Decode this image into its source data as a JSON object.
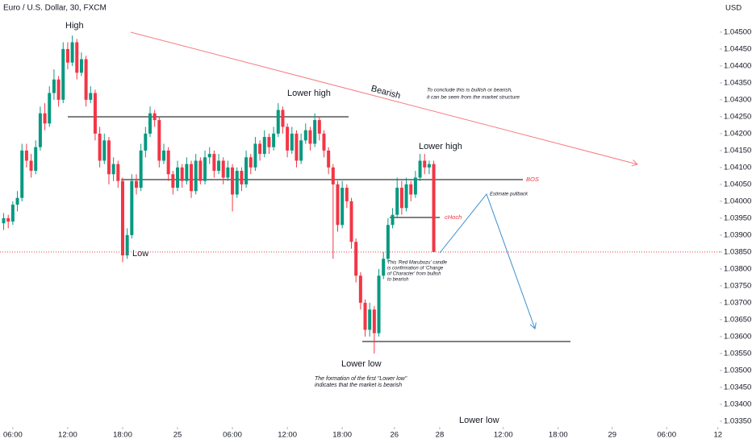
{
  "chart_data": {
    "type": "candlestick",
    "title": "Euro / U.S. Dollar, 30, FXCM",
    "currency": "USD",
    "up_color": "#089981",
    "down_color": "#f23645",
    "xlim": [
      -2.8,
      154.5
    ],
    "ylim": [
      1.03333,
      1.04595
    ],
    "xticks": [
      {
        "value": 0,
        "label": "06:00"
      },
      {
        "value": 12,
        "label": "12:00"
      },
      {
        "value": 24,
        "label": "18:00"
      },
      {
        "value": 36,
        "label": "25"
      },
      {
        "value": 48,
        "label": "06:00"
      },
      {
        "value": 60,
        "label": "12:00"
      },
      {
        "value": 72,
        "label": "18:00"
      },
      {
        "value": 83.4,
        "label": "26"
      },
      {
        "value": 93.3,
        "label": "28"
      },
      {
        "value": 107.2,
        "label": "12:00"
      },
      {
        "value": 119.2,
        "label": "18:00"
      },
      {
        "value": 131,
        "label": "29"
      },
      {
        "value": 142.9,
        "label": "06:00"
      },
      {
        "value": 154.1,
        "label": "12"
      }
    ],
    "yticks": [
      {
        "value": 1.045,
        "label": "1.04500"
      },
      {
        "value": 1.0445,
        "label": "1.04450"
      },
      {
        "value": 1.044,
        "label": "1.04400"
      },
      {
        "value": 1.0435,
        "label": "1.04350"
      },
      {
        "value": 1.043,
        "label": "1.04300"
      },
      {
        "value": 1.0425,
        "label": "1.04250"
      },
      {
        "value": 1.042,
        "label": "1.04200"
      },
      {
        "value": 1.0415,
        "label": "1.04150"
      },
      {
        "value": 1.041,
        "label": "1.04100"
      },
      {
        "value": 1.0405,
        "label": "1.04050"
      },
      {
        "value": 1.04,
        "label": "1.04000"
      },
      {
        "value": 1.0395,
        "label": "1.03950"
      },
      {
        "value": 1.039,
        "label": "1.03900"
      },
      {
        "value": 1.0385,
        "label": "1.03850"
      },
      {
        "value": 1.038,
        "label": "1.03800"
      },
      {
        "value": 1.0375,
        "label": "1.03750"
      },
      {
        "value": 1.037,
        "label": "1.03700"
      },
      {
        "value": 1.0365,
        "label": "1.03650"
      },
      {
        "value": 1.036,
        "label": "1.03600"
      },
      {
        "value": 1.0355,
        "label": "1.03550"
      },
      {
        "value": 1.035,
        "label": "1.03500"
      },
      {
        "value": 1.0345,
        "label": "1.03450"
      },
      {
        "value": 1.034,
        "label": "1.03400"
      },
      {
        "value": 1.0335,
        "label": "1.03350"
      }
    ],
    "x": [
      -2,
      -1,
      0,
      1,
      2,
      3,
      4,
      5,
      6,
      7,
      8,
      9,
      10,
      11,
      12,
      13,
      14,
      15,
      16,
      17,
      18,
      19,
      20,
      21,
      22,
      23,
      24,
      25,
      26,
      27,
      28,
      29,
      30,
      31,
      32,
      33,
      34,
      35,
      36,
      37,
      38,
      39,
      40,
      41,
      42,
      43,
      44,
      45,
      46,
      47,
      48,
      49,
      50,
      51,
      52,
      53,
      54,
      55,
      56,
      57,
      58,
      59,
      60,
      61,
      62,
      63,
      64,
      65,
      66,
      67,
      68,
      69,
      70,
      71,
      72,
      73,
      74,
      75,
      76,
      77,
      78,
      79,
      80,
      81,
      82,
      83,
      84,
      85,
      86,
      87,
      88,
      89,
      90,
      91,
      92
    ],
    "open": [
      1.03935,
      1.0395,
      1.0394,
      1.0399,
      1.0401,
      1.0415,
      1.0412,
      1.0409,
      1.0416,
      1.0426,
      1.0423,
      1.0432,
      1.0436,
      1.043,
      1.0445,
      1.0441,
      1.0447,
      1.0438,
      1.0442,
      1.043,
      1.0432,
      1.042,
      1.0412,
      1.0418,
      1.0408,
      1.0411,
      1.0406,
      1.0384,
      1.039,
      1.0406,
      1.0404,
      1.0415,
      1.042,
      1.0426,
      1.0424,
      1.0412,
      1.0415,
      1.0408,
      1.0404,
      1.041,
      1.0406,
      1.0411,
      1.0403,
      1.0412,
      1.0406,
      1.0413,
      1.0414,
      1.0409,
      1.0412,
      1.0407,
      1.041,
      1.0402,
      1.0409,
      1.0405,
      1.0413,
      1.041,
      1.0417,
      1.0414,
      1.0419,
      1.0416,
      1.042,
      1.0427,
      1.0422,
      1.0415,
      1.042,
      1.0412,
      1.0418,
      1.0421,
      1.0417,
      1.0424,
      1.042,
      1.0415,
      1.041,
      1.0405,
      1.0393,
      1.0404,
      1.04,
      1.0388,
      1.0378,
      1.037,
      1.0362,
      1.0368,
      1.0361,
      1.0378,
      1.0383,
      1.0393,
      1.0396,
      1.0404,
      1.0398,
      1.0405,
      1.0402,
      1.0407,
      1.0412,
      1.041,
      1.0411
    ],
    "high": [
      1.03965,
      1.0396,
      1.04,
      1.0403,
      1.0417,
      1.0417,
      1.0414,
      1.0418,
      1.0428,
      1.0429,
      1.0434,
      1.0439,
      1.0437,
      1.0447,
      1.0447,
      1.0449,
      1.0448,
      1.0444,
      1.0443,
      1.0434,
      1.0433,
      1.0422,
      1.042,
      1.0419,
      1.0413,
      1.0412,
      1.0407,
      1.0392,
      1.0408,
      1.0408,
      1.0417,
      1.0422,
      1.0428,
      1.0427,
      1.0425,
      1.0417,
      1.0416,
      1.0409,
      1.0412,
      1.0411,
      1.0413,
      1.0412,
      1.0414,
      1.0413,
      1.0415,
      1.0416,
      1.0415,
      1.0414,
      1.0413,
      1.0412,
      1.0411,
      1.041,
      1.041,
      1.0415,
      1.0414,
      1.0419,
      1.0418,
      1.0421,
      1.042,
      1.0422,
      1.0429,
      1.0428,
      1.0423,
      1.0422,
      1.0421,
      1.042,
      1.0423,
      1.0422,
      1.0426,
      1.0425,
      1.0421,
      1.0416,
      1.0411,
      1.0406,
      1.0406,
      1.0405,
      1.0401,
      1.0389,
      1.0379,
      1.0371,
      1.037,
      1.0369,
      1.038,
      1.0385,
      1.0395,
      1.0398,
      1.0407,
      1.0406,
      1.0407,
      1.0406,
      1.0409,
      1.0414,
      1.0414,
      1.0412,
      1.0412
    ],
    "low": [
      1.03915,
      1.0392,
      1.0393,
      1.0397,
      1.04,
      1.041,
      1.0407,
      1.0408,
      1.0415,
      1.0421,
      1.0422,
      1.043,
      1.0428,
      1.0429,
      1.0439,
      1.044,
      1.0436,
      1.0437,
      1.0428,
      1.0429,
      1.0418,
      1.041,
      1.0411,
      1.0405,
      1.0406,
      1.0404,
      1.0382,
      1.0383,
      1.0389,
      1.0402,
      1.0403,
      1.0413,
      1.0419,
      1.0422,
      1.041,
      1.0411,
      1.0406,
      1.0402,
      1.0403,
      1.0404,
      1.0405,
      1.0401,
      1.0402,
      1.0405,
      1.0405,
      1.0411,
      1.0407,
      1.0408,
      1.0405,
      1.0406,
      1.0397,
      1.0401,
      1.0403,
      1.0404,
      1.0408,
      1.0409,
      1.0412,
      1.0413,
      1.0414,
      1.0415,
      1.0419,
      1.042,
      1.0413,
      1.0414,
      1.041,
      1.0411,
      1.0417,
      1.0415,
      1.0416,
      1.0418,
      1.0413,
      1.0408,
      1.0383,
      1.0391,
      1.0392,
      1.0398,
      1.0386,
      1.0376,
      1.0368,
      1.036,
      1.036,
      1.0355,
      1.036,
      1.0377,
      1.0382,
      1.0392,
      1.0395,
      1.0396,
      1.0397,
      1.04,
      1.0401,
      1.0406,
      1.0408,
      1.0408,
      1.0385
    ],
    "close": [
      1.0395,
      1.0394,
      1.0399,
      1.0401,
      1.0415,
      1.0412,
      1.0409,
      1.0416,
      1.0426,
      1.0423,
      1.0432,
      1.0436,
      1.043,
      1.0445,
      1.0441,
      1.0447,
      1.0438,
      1.0442,
      1.043,
      1.0432,
      1.042,
      1.0412,
      1.0418,
      1.0408,
      1.0411,
      1.0406,
      1.0384,
      1.039,
      1.0406,
      1.0404,
      1.0415,
      1.042,
      1.0426,
      1.0424,
      1.0412,
      1.0415,
      1.0408,
      1.0404,
      1.041,
      1.0406,
      1.0411,
      1.0403,
      1.0412,
      1.0406,
      1.0413,
      1.0414,
      1.0409,
      1.0412,
      1.0407,
      1.041,
      1.0402,
      1.0409,
      1.0405,
      1.0413,
      1.041,
      1.0417,
      1.0414,
      1.0419,
      1.0416,
      1.042,
      1.0427,
      1.0422,
      1.0415,
      1.042,
      1.0412,
      1.0418,
      1.0421,
      1.0417,
      1.0424,
      1.042,
      1.0415,
      1.041,
      1.0405,
      1.0393,
      1.0404,
      1.04,
      1.0388,
      1.0378,
      1.037,
      1.0362,
      1.0368,
      1.0361,
      1.0378,
      1.0383,
      1.0393,
      1.0396,
      1.0404,
      1.0398,
      1.0405,
      1.0402,
      1.0407,
      1.0412,
      1.041,
      1.0411,
      1.0385
    ],
    "annotations": {
      "high": "High",
      "low": "Low",
      "lower_high_1": "Lower high",
      "lower_high_2": "Lower high",
      "lower_low_1": "Lower low",
      "lower_low_2": "Lower low",
      "bearish": "Bearish",
      "conclusion": [
        "To conclude this is bullish or bearish,",
        "it can be seen from the market structure"
      ],
      "bos": "BOS",
      "choch": "cHoch",
      "estimate": "Estimate pullback",
      "marubozu": [
        "This 'Red Marubozu' candle",
        "is confirmation of 'Change",
        "of Character' from bullish",
        "to bearish"
      ],
      "formation": [
        "The formation of the first \"Lower low\"",
        "indicates that the market is bearish"
      ]
    }
  }
}
